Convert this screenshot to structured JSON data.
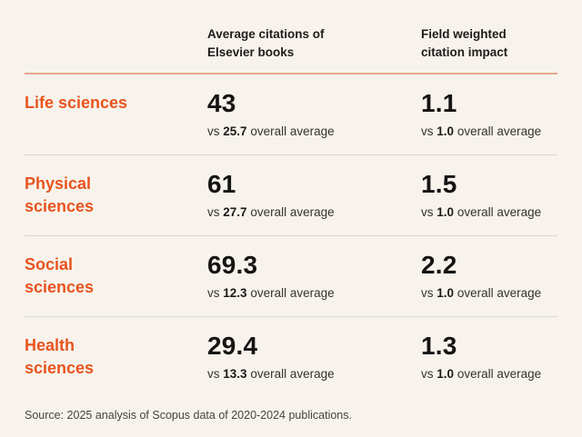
{
  "header": {
    "col_citations": "Average citations of Elsevier books",
    "col_fwci": "Field weighted citation impact"
  },
  "comparison": {
    "vs_label": "vs",
    "suffix": "overall average"
  },
  "rows": [
    {
      "category": "Life sciences",
      "citations_value": "43",
      "citations_overall": "25.7",
      "fwci_value": "1.1",
      "fwci_overall": "1.0"
    },
    {
      "category": "Physical sciences",
      "citations_value": "61",
      "citations_overall": "27.7",
      "fwci_value": "1.5",
      "fwci_overall": "1.0"
    },
    {
      "category": "Social sciences",
      "citations_value": "69.3",
      "citations_overall": "12.3",
      "fwci_value": "2.2",
      "fwci_overall": "1.0"
    },
    {
      "category": "Health sciences",
      "citations_value": "29.4",
      "citations_overall": "13.3",
      "fwci_value": "1.3",
      "fwci_overall": "1.0"
    }
  ],
  "source": "Source: 2025 analysis of Scopus data of 2020-2024 publications.",
  "colors": {
    "background": "#f7f3ec",
    "accent_orange": "#e9541f",
    "divider_orange": "#e9a78f",
    "divider_gray": "#dbd8d0",
    "text_dark": "#1a1a18"
  },
  "chart_data": {
    "type": "table",
    "title": "",
    "categories": [
      "Life sciences",
      "Physical sciences",
      "Social sciences",
      "Health sciences"
    ],
    "series": [
      {
        "name": "Average citations of Elsevier books",
        "values": [
          43,
          61,
          69.3,
          29.4
        ]
      },
      {
        "name": "Overall average citations",
        "values": [
          25.7,
          27.7,
          12.3,
          13.3
        ]
      },
      {
        "name": "Field weighted citation impact",
        "values": [
          1.1,
          1.5,
          2.2,
          1.3
        ]
      },
      {
        "name": "Overall average field weighted citation impact",
        "values": [
          1.0,
          1.0,
          1.0,
          1.0
        ]
      }
    ],
    "source": "Source: 2025 analysis of Scopus data of 2020-2024 publications."
  }
}
